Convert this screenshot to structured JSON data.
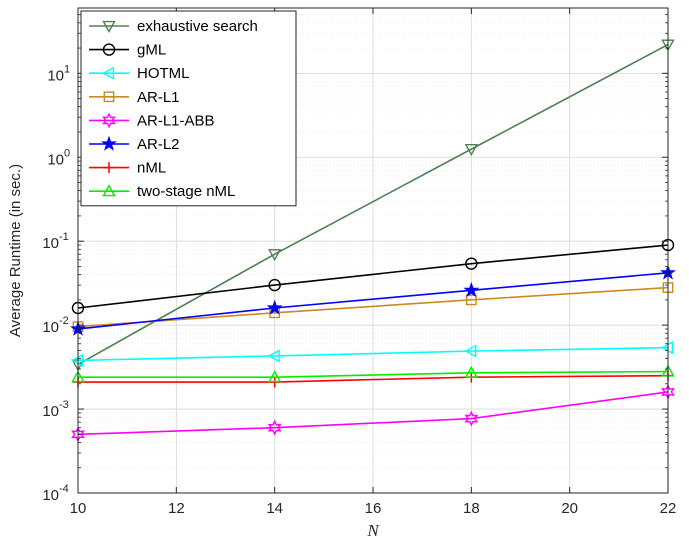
{
  "chart_data": {
    "type": "line",
    "title": "",
    "xlabel": "N",
    "ylabel": "Average Runtime (in sec.)",
    "x": [
      10,
      14,
      18,
      22
    ],
    "xlim": [
      10,
      22
    ],
    "ylim": [
      0.0001,
      60
    ],
    "yscale": "log",
    "grid": true,
    "legend_position": "top-left",
    "x_ticks": [
      10,
      12,
      14,
      16,
      18,
      20,
      22
    ],
    "x_tick_labels": [
      "10",
      "12",
      "14",
      "16",
      "18",
      "20",
      "22"
    ],
    "y_tick_labels": [
      {
        "base": "10",
        "exp": "-4",
        "value": 0.0001
      },
      {
        "base": "10",
        "exp": "-3",
        "value": 0.001
      },
      {
        "base": "10",
        "exp": "-2",
        "value": 0.01
      },
      {
        "base": "10",
        "exp": "-1",
        "value": 0.1
      },
      {
        "base": "10",
        "exp": "0",
        "value": 1
      },
      {
        "base": "10",
        "exp": "1",
        "value": 10
      }
    ],
    "series": [
      {
        "name": "exhaustive search",
        "color": "#4f8050",
        "marker": "triangle-down",
        "values": [
          0.0034,
          0.07,
          1.25,
          22
        ]
      },
      {
        "name": "gML",
        "color": "#000000",
        "marker": "circle",
        "values": [
          0.016,
          0.03,
          0.054,
          0.09
        ]
      },
      {
        "name": "HOTML",
        "color": "#00ffff",
        "marker": "triangle-left",
        "values": [
          0.0038,
          0.0043,
          0.0049,
          0.0054
        ]
      },
      {
        "name": "AR-L1",
        "color": "#cc8822",
        "marker": "square",
        "values": [
          0.0096,
          0.014,
          0.02,
          0.028
        ]
      },
      {
        "name": "AR-L1-ABB",
        "color": "#ff00ff",
        "marker": "hexagram",
        "values": [
          0.0005,
          0.0006,
          0.00077,
          0.0016
        ]
      },
      {
        "name": "AR-L2",
        "color": "#0000ff",
        "marker": "star",
        "values": [
          0.009,
          0.016,
          0.026,
          0.042
        ]
      },
      {
        "name": "nML",
        "color": "#ff0000",
        "marker": "plus",
        "values": [
          0.0021,
          0.0021,
          0.0024,
          0.0025
        ]
      },
      {
        "name": "two-stage nML",
        "color": "#00ee00",
        "marker": "triangle-up",
        "values": [
          0.0024,
          0.0024,
          0.0027,
          0.0028
        ]
      }
    ]
  }
}
